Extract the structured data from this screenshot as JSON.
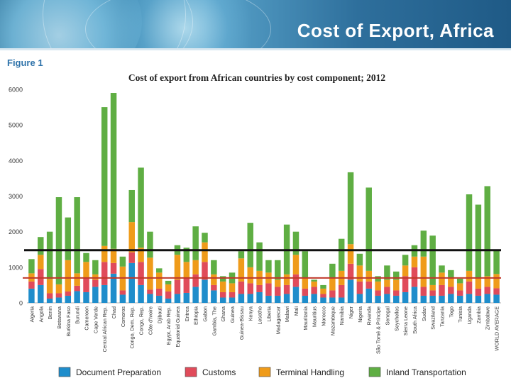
{
  "slide": {
    "title": "Cost of Export, Africa",
    "figure_label": "Figure 1"
  },
  "colors": {
    "doc": "#1f8dcb",
    "customs": "#e04b5a",
    "terminal": "#ef9b1a",
    "inland": "#5fae43",
    "ref_black": "#111111",
    "ref_red": "#c0392b"
  },
  "chart_data": {
    "type": "bar",
    "stacked": true,
    "title": "Cost of export from African countries by cost component; 2012",
    "xlabel": "",
    "ylabel": "",
    "ylim": [
      0,
      6000
    ],
    "yticks": [
      0,
      1000,
      2000,
      3000,
      4000,
      5000,
      6000
    ],
    "reference_lines": [
      {
        "value": 1480,
        "color": "black"
      },
      {
        "value": 700,
        "color": "red"
      }
    ],
    "legend_position": "bottom",
    "categories": [
      "Algeria",
      "Angola",
      "Benin",
      "Botswana",
      "Burkina Faso",
      "Burundi",
      "Cameroon",
      "Cape Verde",
      "Central African Rep.",
      "Chad",
      "Comoros",
      "Congo, Dem. Rep.",
      "Congo, Rep.",
      "Côte d'Ivoire",
      "Djibouti",
      "Egypt, Arab Rep.",
      "Equatorial Guinea",
      "Eritrea",
      "Ethiopia",
      "Gabon",
      "Gambia, The",
      "Ghana",
      "Guinea",
      "Guinea-Bissau",
      "Kenya",
      "Lesotho",
      "Liberia",
      "Madagascar",
      "Malawi",
      "Mali",
      "Mauritania",
      "Mauritius",
      "Morocco",
      "Mozambique",
      "Namibia",
      "Niger",
      "Nigeria",
      "Rwanda",
      "São Tomé & Principe",
      "Senegal",
      "Seychelles",
      "Sierra Leone",
      "South Africa",
      "Sudan",
      "Swaziland",
      "Tanzania",
      "Togo",
      "Tunisia",
      "Uganda",
      "Zambia",
      "Zimbabwe",
      "WORLD AVERAGE"
    ],
    "series": [
      {
        "name": "Document Preparation",
        "values": [
          400,
          500,
          120,
          150,
          200,
          330,
          300,
          450,
          500,
          820,
          230,
          1120,
          500,
          250,
          200,
          120,
          250,
          280,
          450,
          650,
          350,
          150,
          150,
          250,
          250,
          300,
          200,
          200,
          250,
          450,
          200,
          250,
          150,
          150,
          150,
          650,
          250,
          400,
          200,
          250,
          200,
          300,
          450,
          200,
          200,
          200,
          250,
          200,
          250,
          200,
          250,
          230
        ]
      },
      {
        "name": "Customs",
        "values": [
          200,
          450,
          150,
          120,
          120,
          150,
          400,
          200,
          650,
          300,
          120,
          300,
          650,
          120,
          200,
          200,
          400,
          420,
          350,
          500,
          150,
          150,
          150,
          350,
          300,
          200,
          350,
          250,
          250,
          350,
          200,
          200,
          100,
          200,
          350,
          450,
          350,
          200,
          150,
          200,
          150,
          450,
          550,
          250,
          150,
          300,
          200,
          150,
          350,
          200,
          200,
          180
        ]
      },
      {
        "name": "Terminal Handling",
        "values": [
          230,
          400,
          400,
          250,
          880,
          350,
          450,
          150,
          450,
          400,
          670,
          850,
          400,
          900,
          450,
          200,
          700,
          450,
          400,
          550,
          300,
          300,
          250,
          650,
          450,
          400,
          300,
          200,
          300,
          550,
          300,
          150,
          150,
          350,
          400,
          550,
          450,
          300,
          250,
          200,
          300,
          300,
          300,
          850,
          150,
          350,
          250,
          200,
          300,
          300,
          300,
          400
        ]
      },
      {
        "name": "Inland Transportation",
        "values": [
          400,
          500,
          1330,
          2450,
          1200,
          2140,
          250,
          400,
          3900,
          4380,
          280,
          900,
          2250,
          730,
          120,
          100,
          270,
          400,
          950,
          270,
          400,
          150,
          300,
          200,
          1250,
          800,
          350,
          550,
          1400,
          650,
          750,
          50,
          100,
          400,
          900,
          2020,
          330,
          2340,
          150,
          400,
          230,
          300,
          320,
          730,
          1390,
          200,
          220,
          130,
          2150,
          2060,
          2530,
          650
        ]
      }
    ]
  }
}
